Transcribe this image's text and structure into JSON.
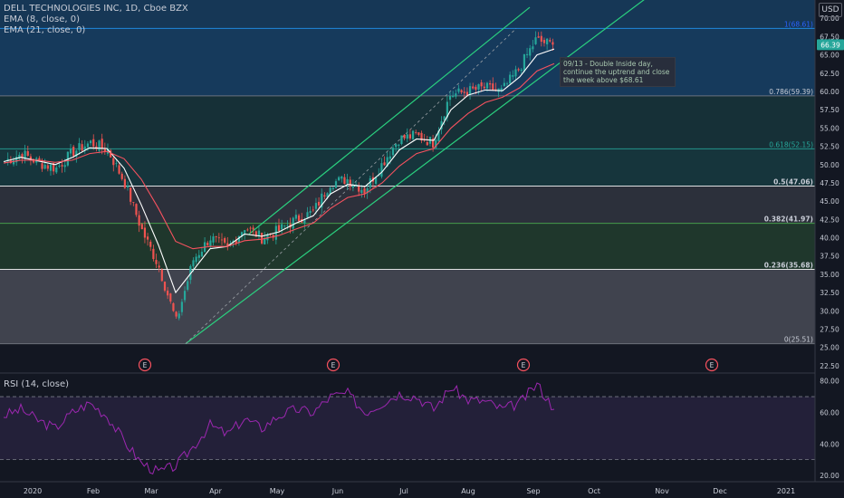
{
  "header": {
    "symbol_line": "DELL TECHNOLOGIES INC, 1D, Cboe BZX",
    "ema_fast_label": "EMA (8, close, 0)",
    "ema_slow_label": "EMA (21, close, 0)",
    "currency_label": "USD",
    "rsi_label": "RSI (14, close)"
  },
  "annotation": {
    "text": "09/13 - Double Inside day, continue the uptrend and close the week above $68.61"
  },
  "colors": {
    "background": "#131722",
    "candle_up": "#26a69a",
    "candle_down": "#ef5350",
    "ema_fast": "#ffffff",
    "ema_slow": "#f7525f",
    "channel": "#2ad07f",
    "rsi_line": "#9c27b0",
    "last_price_badge": "#26a69a"
  },
  "chart_data": [
    {
      "type": "candlestick",
      "title": "DELL TECHNOLOGIES INC, 1D, Cboe BZX",
      "x_tick_labels": [
        "2020",
        "Feb",
        "Mar",
        "Apr",
        "May",
        "Jun",
        "Jul",
        "Aug",
        "Sep",
        "Oct",
        "Nov",
        "Dec",
        "2021"
      ],
      "y_tick_labels": [
        "22.50",
        "25.00",
        "27.50",
        "30.00",
        "32.50",
        "35.00",
        "37.50",
        "40.00",
        "42.50",
        "45.00",
        "47.50",
        "50.00",
        "52.50",
        "55.00",
        "57.50",
        "60.00",
        "62.50",
        "65.00",
        "67.50",
        "70.00"
      ],
      "ylim": [
        21.5,
        72.5
      ],
      "last_price": "66.39",
      "grid": false,
      "series": [
        {
          "name": "price",
          "x": [
            "Jan",
            "Jan",
            "Jan",
            "Feb",
            "Feb",
            "Feb",
            "Feb",
            "Mar",
            "Mar",
            "Mar",
            "Mar",
            "Apr",
            "Apr",
            "Apr",
            "Apr",
            "May",
            "May",
            "May",
            "May",
            "Jun",
            "Jun",
            "Jun",
            "Jun",
            "Jul",
            "Jul",
            "Jul",
            "Jul",
            "Aug",
            "Aug",
            "Aug",
            "Aug",
            "Sep",
            "Sep"
          ],
          "close": [
            50.5,
            51.5,
            50.2,
            49.5,
            51.8,
            53.0,
            52.0,
            47.5,
            41.0,
            36.0,
            28.5,
            37.0,
            40.0,
            38.5,
            41.5,
            40.0,
            41.0,
            42.5,
            43.5,
            47.5,
            48.0,
            46.5,
            50.0,
            53.5,
            54.0,
            53.0,
            59.5,
            60.0,
            60.5,
            60.0,
            63.0,
            67.0,
            66.39
          ]
        },
        {
          "name": "EMA (8, close, 0)",
          "values": [
            50.4,
            51.0,
            50.5,
            50.0,
            51.0,
            52.3,
            52.2,
            49.5,
            44.5,
            39.0,
            32.5,
            35.5,
            38.5,
            38.8,
            40.5,
            40.2,
            40.8,
            42.0,
            43.0,
            46.0,
            47.3,
            47.0,
            49.0,
            52.0,
            53.5,
            53.3,
            57.5,
            59.5,
            60.2,
            60.1,
            62.0,
            65.0,
            65.8
          ]
        },
        {
          "name": "EMA (21, close, 0)",
          "values": [
            50.2,
            50.6,
            50.6,
            50.3,
            50.6,
            51.5,
            51.8,
            50.8,
            48.0,
            44.0,
            39.5,
            38.5,
            38.8,
            38.8,
            39.6,
            39.8,
            40.3,
            41.2,
            42.0,
            44.0,
            45.5,
            46.0,
            47.5,
            49.8,
            51.5,
            52.2,
            55.0,
            57.0,
            58.5,
            59.2,
            60.5,
            62.8,
            63.8
          ]
        }
      ],
      "fibonacci_levels": [
        {
          "label": "1(68.61)",
          "value": 68.61
        },
        {
          "label": "0.786(59.39)",
          "value": 59.39
        },
        {
          "label": "0.618(52.15)",
          "value": 52.15
        },
        {
          "label": "0.5(47.06)",
          "value": 47.06
        },
        {
          "label": "0.382(41.97)",
          "value": 41.97
        },
        {
          "label": "0.236(35.68)",
          "value": 35.68
        },
        {
          "label": "0(25.51)",
          "value": 25.51
        }
      ],
      "earnings_markers": [
        "E",
        "E",
        "E",
        "E"
      ]
    },
    {
      "type": "line",
      "title": "RSI (14, close)",
      "y_tick_labels": [
        "20.00",
        "40.00",
        "60.00",
        "80.00"
      ],
      "ylim": [
        16,
        85
      ],
      "bands": [
        70,
        30
      ],
      "series": [
        {
          "name": "RSI (14, close)",
          "values": [
            58,
            62,
            55,
            50,
            60,
            66,
            58,
            42,
            28,
            22,
            26,
            38,
            52,
            46,
            56,
            50,
            58,
            62,
            60,
            70,
            72,
            60,
            66,
            72,
            70,
            62,
            76,
            68,
            67,
            62,
            66,
            78,
            62
          ]
        }
      ]
    }
  ]
}
